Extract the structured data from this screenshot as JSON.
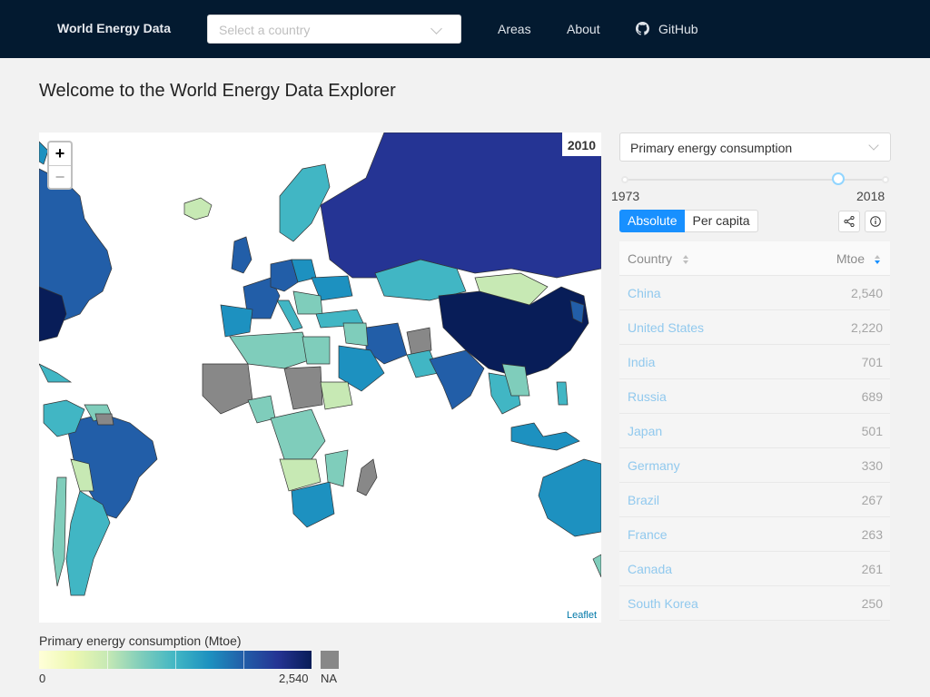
{
  "navbar": {
    "brand": "World Energy Data",
    "country_select_placeholder": "Select a country",
    "links": [
      "Areas",
      "About",
      "GitHub"
    ]
  },
  "page_title": "Welcome to the World Energy Data Explorer",
  "map": {
    "year": "2010",
    "zoom_in": "+",
    "zoom_out": "−",
    "attribution": "Leaflet"
  },
  "legend": {
    "title": "Primary energy consumption (Mtoe)",
    "min": "0",
    "max": "2,540",
    "na": "NA"
  },
  "controls": {
    "metric": "Primary energy consumption",
    "slider_min": "1973",
    "slider_max": "2018",
    "slider_value_fraction": 0.82,
    "mode_absolute": "Absolute",
    "mode_per_capita": "Per capita"
  },
  "table": {
    "col_country": "Country",
    "col_value": "Mtoe",
    "rows": [
      {
        "country": "China",
        "value": "2,540"
      },
      {
        "country": "United States",
        "value": "2,220"
      },
      {
        "country": "India",
        "value": "701"
      },
      {
        "country": "Russia",
        "value": "689"
      },
      {
        "country": "Japan",
        "value": "501"
      },
      {
        "country": "Germany",
        "value": "330"
      },
      {
        "country": "Brazil",
        "value": "267"
      },
      {
        "country": "France",
        "value": "263"
      },
      {
        "country": "Canada",
        "value": "261"
      },
      {
        "country": "South Korea",
        "value": "250"
      }
    ]
  },
  "colors": {
    "navbar": "#031a30",
    "accent": "#1890ff",
    "na": "#888888",
    "scale": [
      "#ffffd9",
      "#edf8b1",
      "#c7e9b4",
      "#7fcdbb",
      "#41b6c4",
      "#1d91c0",
      "#225ea8",
      "#253494",
      "#081d58"
    ]
  }
}
